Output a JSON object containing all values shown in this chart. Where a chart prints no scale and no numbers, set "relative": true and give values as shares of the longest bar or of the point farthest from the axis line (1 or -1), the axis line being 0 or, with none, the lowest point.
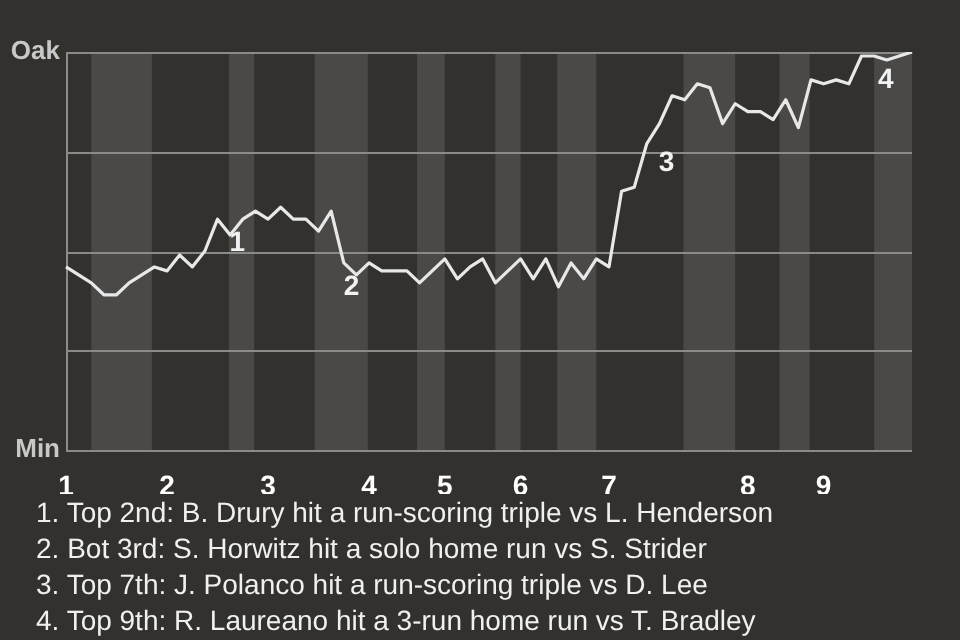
{
  "chart_data": {
    "type": "line",
    "relative": true,
    "categories": [
      "1",
      null,
      null,
      null,
      null,
      null,
      null,
      null,
      "2",
      null,
      null,
      null,
      null,
      null,
      null,
      null,
      "3",
      null,
      null,
      null,
      null,
      null,
      null,
      null,
      "4",
      null,
      null,
      null,
      null,
      null,
      "5",
      null,
      null,
      null,
      null,
      null,
      "6",
      null,
      null,
      null,
      null,
      null,
      null,
      "7",
      null,
      null,
      null,
      null,
      null,
      null,
      null,
      null,
      null,
      null,
      "8",
      null,
      null,
      null,
      null,
      null,
      "9",
      null,
      null,
      null,
      null,
      null,
      null,
      null
    ],
    "series": [
      {
        "color": "#e8e8e8",
        "values": [
          0.46,
          0.44,
          0.42,
          0.39,
          0.39,
          0.42,
          0.44,
          0.46,
          0.45,
          0.49,
          0.46,
          0.5,
          0.58,
          0.54,
          0.58,
          0.6,
          0.58,
          0.61,
          0.58,
          0.58,
          0.55,
          0.6,
          0.47,
          0.44,
          0.47,
          0.45,
          0.45,
          0.45,
          0.42,
          0.45,
          0.48,
          0.43,
          0.46,
          0.48,
          0.42,
          0.45,
          0.48,
          0.43,
          0.48,
          0.41,
          0.47,
          0.43,
          0.48,
          0.46,
          0.65,
          0.66,
          0.77,
          0.82,
          0.89,
          0.88,
          0.92,
          0.91,
          0.82,
          0.87,
          0.85,
          0.85,
          0.83,
          0.88,
          0.81,
          0.93,
          0.92,
          0.93,
          0.92,
          0.99,
          0.99,
          0.98,
          0.99,
          1
        ]
      }
    ],
    "grid": "y",
    "marker": "none",
    "line_style": "solid",
    "legend": false,
    "annotations": [
      "1",
      "2",
      "3",
      "4",
      "Oak",
      "Min",
      "1. Top 2nd: B. Drury hit a run-scoring triple vs L. Henderson",
      "2. Bot 3rd: S. Horwitz hit a solo home run vs S. Strider",
      "3. Top 7th: J. Polanco hit a run-scoring triple vs D. Lee",
      "4. Top 9th: R. Laureano hit a 3-run home run vs T. Bradley"
    ]
  }
}
